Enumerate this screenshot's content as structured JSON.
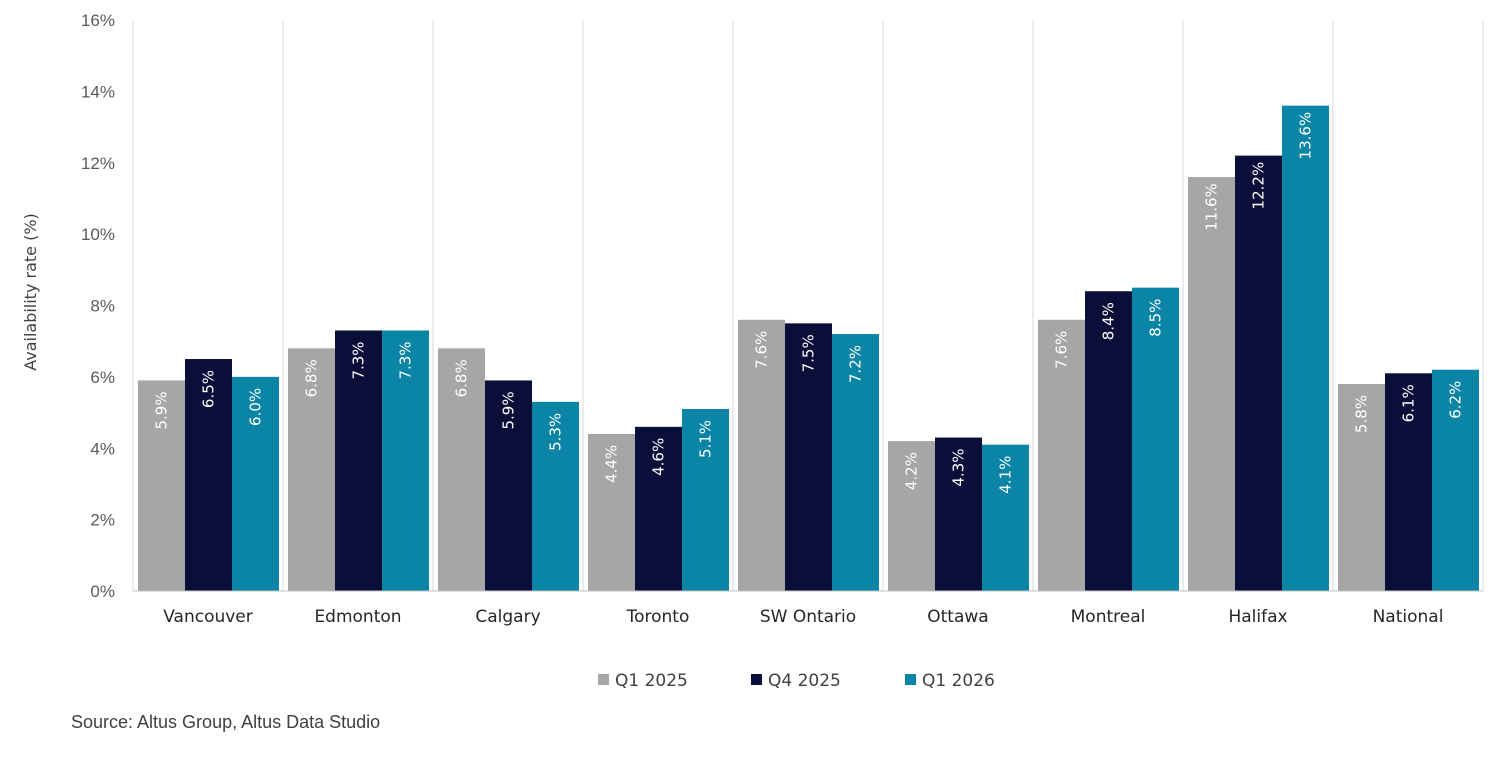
{
  "chart_data": {
    "type": "bar",
    "ylabel": "Availability rate (%)",
    "ylim": [
      0,
      16
    ],
    "yticks": [
      "0%",
      "2%",
      "4%",
      "6%",
      "8%",
      "10%",
      "12%",
      "14%",
      "16%"
    ],
    "categories": [
      "Vancouver",
      "Edmonton",
      "Calgary",
      "Toronto",
      "SW Ontario",
      "Ottawa",
      "Montreal",
      "Halifax",
      "National"
    ],
    "series": [
      {
        "name": "Q1 2025",
        "color": "#a6a6a6",
        "values": [
          5.9,
          6.8,
          6.8,
          4.4,
          7.6,
          4.2,
          7.6,
          11.6,
          5.8
        ],
        "labels": [
          "5.9%",
          "6.8%",
          "6.8%",
          "4.4%",
          "7.6%",
          "4.2%",
          "7.6%",
          "11.6%",
          "5.8%"
        ]
      },
      {
        "name": "Q4 2025",
        "color": "#0a0f3a",
        "values": [
          6.5,
          7.3,
          5.9,
          4.6,
          7.5,
          4.3,
          8.4,
          12.2,
          6.1
        ],
        "labels": [
          "6.5%",
          "7.3%",
          "5.9%",
          "4.6%",
          "7.5%",
          "4.3%",
          "8.4%",
          "12.2%",
          "6.1%"
        ]
      },
      {
        "name": "Q1 2026",
        "color": "#0a85a6",
        "values": [
          6.0,
          7.3,
          5.3,
          5.1,
          7.2,
          4.1,
          8.5,
          13.6,
          6.2
        ],
        "labels": [
          "6.0%",
          "7.3%",
          "5.3%",
          "5.1%",
          "7.2%",
          "4.1%",
          "8.5%",
          "13.6%",
          "6.2%"
        ]
      }
    ],
    "grid": "vertical-category-separators",
    "legend": "bottom-center"
  },
  "source": "Source: Altus Group, Altus Data Studio"
}
